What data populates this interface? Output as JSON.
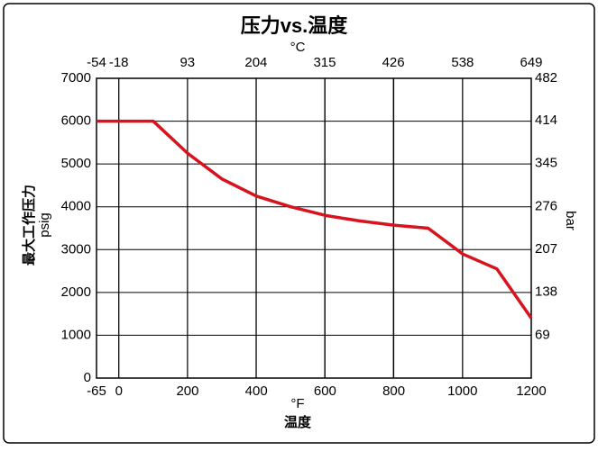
{
  "chart_data": {
    "type": "line",
    "title": "压力vs.温度",
    "x_label": "温度",
    "x_unit": "°F",
    "x2_unit": "°C",
    "y_label": "最大工作压力",
    "y_unit": "psig",
    "y2_unit": "bar",
    "xlim": [
      -65,
      1200
    ],
    "xticks": [
      -65,
      0,
      200,
      400,
      600,
      800,
      1000,
      1200
    ],
    "x2lim": [
      -54,
      649
    ],
    "x2ticks": [
      -54,
      -18,
      93,
      204,
      315,
      426,
      538,
      649
    ],
    "ylim": [
      0,
      7000
    ],
    "yticks": [
      0,
      1000,
      2000,
      3000,
      4000,
      5000,
      6000,
      7000
    ],
    "y2lim": [
      0,
      482
    ],
    "y2ticks": [
      69,
      138,
      207,
      276,
      345,
      414,
      482
    ],
    "grid": true,
    "series": [
      {
        "color": "#d7141e",
        "x": [
          -65,
          100,
          200,
          300,
          400,
          500,
          600,
          700,
          800,
          900,
          1000,
          1100,
          1200
        ],
        "values": [
          6000,
          6000,
          5250,
          4650,
          4250,
          4000,
          3800,
          3670,
          3570,
          3500,
          2900,
          2550,
          1400
        ]
      }
    ]
  }
}
